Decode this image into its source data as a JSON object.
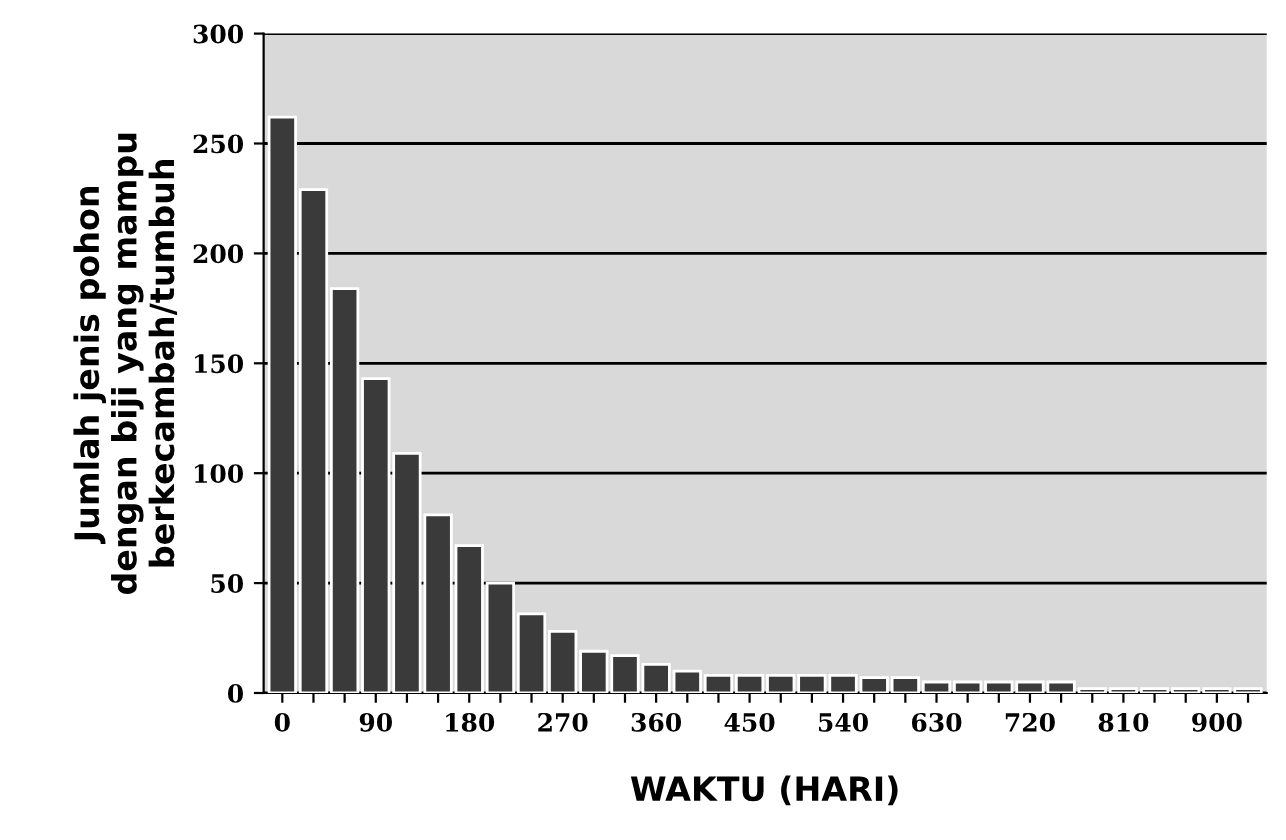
{
  "chart_data": {
    "type": "bar",
    "xlabel": "WAKTU (HARI)",
    "ylabel": "Jumlah jenis pohon\ndengan biji yang mampu\nberkecambah/tumbuh",
    "categories": [
      "0",
      null,
      null,
      "90",
      null,
      null,
      "180",
      null,
      null,
      "270",
      null,
      null,
      "360",
      null,
      null,
      "450",
      null,
      null,
      "540",
      null,
      null,
      "630",
      null,
      null,
      "720",
      null,
      null,
      "810",
      null,
      null,
      "900",
      null
    ],
    "values": [
      262,
      229,
      184,
      143,
      109,
      81,
      67,
      50,
      36,
      28,
      19,
      17,
      13,
      10,
      8,
      8,
      8,
      8,
      8,
      7,
      7,
      5,
      5,
      5,
      5,
      5,
      2,
      2,
      2,
      2,
      2,
      2
    ],
    "color": "#3a3a3a",
    "ylim": [
      0,
      300
    ],
    "yticks": [
      0,
      50,
      100,
      150,
      200,
      250,
      300
    ],
    "grid": "y"
  }
}
